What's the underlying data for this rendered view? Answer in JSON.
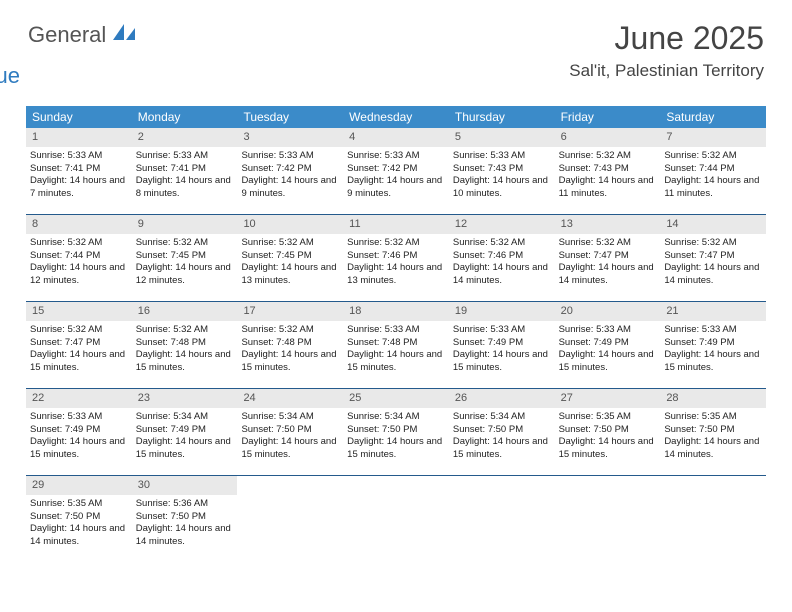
{
  "brand": {
    "word1": "General",
    "word2": "Blue"
  },
  "header": {
    "title": "June 2025",
    "location": "Sal'it, Palestinian Territory"
  },
  "colors": {
    "header_bar": "#3b8bc9",
    "week_divider": "#245a8c",
    "daynum_band": "#e9e9e9",
    "text": "#333333",
    "brand_blue": "#2f7bbf"
  },
  "calendar": {
    "day_labels": [
      "Sunday",
      "Monday",
      "Tuesday",
      "Wednesday",
      "Thursday",
      "Friday",
      "Saturday"
    ],
    "weeks": [
      [
        {
          "n": "1",
          "sunrise": "5:33 AM",
          "sunset": "7:41 PM",
          "daylight": "14 hours and 7 minutes."
        },
        {
          "n": "2",
          "sunrise": "5:33 AM",
          "sunset": "7:41 PM",
          "daylight": "14 hours and 8 minutes."
        },
        {
          "n": "3",
          "sunrise": "5:33 AM",
          "sunset": "7:42 PM",
          "daylight": "14 hours and 9 minutes."
        },
        {
          "n": "4",
          "sunrise": "5:33 AM",
          "sunset": "7:42 PM",
          "daylight": "14 hours and 9 minutes."
        },
        {
          "n": "5",
          "sunrise": "5:33 AM",
          "sunset": "7:43 PM",
          "daylight": "14 hours and 10 minutes."
        },
        {
          "n": "6",
          "sunrise": "5:32 AM",
          "sunset": "7:43 PM",
          "daylight": "14 hours and 11 minutes."
        },
        {
          "n": "7",
          "sunrise": "5:32 AM",
          "sunset": "7:44 PM",
          "daylight": "14 hours and 11 minutes."
        }
      ],
      [
        {
          "n": "8",
          "sunrise": "5:32 AM",
          "sunset": "7:44 PM",
          "daylight": "14 hours and 12 minutes."
        },
        {
          "n": "9",
          "sunrise": "5:32 AM",
          "sunset": "7:45 PM",
          "daylight": "14 hours and 12 minutes."
        },
        {
          "n": "10",
          "sunrise": "5:32 AM",
          "sunset": "7:45 PM",
          "daylight": "14 hours and 13 minutes."
        },
        {
          "n": "11",
          "sunrise": "5:32 AM",
          "sunset": "7:46 PM",
          "daylight": "14 hours and 13 minutes."
        },
        {
          "n": "12",
          "sunrise": "5:32 AM",
          "sunset": "7:46 PM",
          "daylight": "14 hours and 14 minutes."
        },
        {
          "n": "13",
          "sunrise": "5:32 AM",
          "sunset": "7:47 PM",
          "daylight": "14 hours and 14 minutes."
        },
        {
          "n": "14",
          "sunrise": "5:32 AM",
          "sunset": "7:47 PM",
          "daylight": "14 hours and 14 minutes."
        }
      ],
      [
        {
          "n": "15",
          "sunrise": "5:32 AM",
          "sunset": "7:47 PM",
          "daylight": "14 hours and 15 minutes."
        },
        {
          "n": "16",
          "sunrise": "5:32 AM",
          "sunset": "7:48 PM",
          "daylight": "14 hours and 15 minutes."
        },
        {
          "n": "17",
          "sunrise": "5:32 AM",
          "sunset": "7:48 PM",
          "daylight": "14 hours and 15 minutes."
        },
        {
          "n": "18",
          "sunrise": "5:33 AM",
          "sunset": "7:48 PM",
          "daylight": "14 hours and 15 minutes."
        },
        {
          "n": "19",
          "sunrise": "5:33 AM",
          "sunset": "7:49 PM",
          "daylight": "14 hours and 15 minutes."
        },
        {
          "n": "20",
          "sunrise": "5:33 AM",
          "sunset": "7:49 PM",
          "daylight": "14 hours and 15 minutes."
        },
        {
          "n": "21",
          "sunrise": "5:33 AM",
          "sunset": "7:49 PM",
          "daylight": "14 hours and 15 minutes."
        }
      ],
      [
        {
          "n": "22",
          "sunrise": "5:33 AM",
          "sunset": "7:49 PM",
          "daylight": "14 hours and 15 minutes."
        },
        {
          "n": "23",
          "sunrise": "5:34 AM",
          "sunset": "7:49 PM",
          "daylight": "14 hours and 15 minutes."
        },
        {
          "n": "24",
          "sunrise": "5:34 AM",
          "sunset": "7:50 PM",
          "daylight": "14 hours and 15 minutes."
        },
        {
          "n": "25",
          "sunrise": "5:34 AM",
          "sunset": "7:50 PM",
          "daylight": "14 hours and 15 minutes."
        },
        {
          "n": "26",
          "sunrise": "5:34 AM",
          "sunset": "7:50 PM",
          "daylight": "14 hours and 15 minutes."
        },
        {
          "n": "27",
          "sunrise": "5:35 AM",
          "sunset": "7:50 PM",
          "daylight": "14 hours and 15 minutes."
        },
        {
          "n": "28",
          "sunrise": "5:35 AM",
          "sunset": "7:50 PM",
          "daylight": "14 hours and 14 minutes."
        }
      ],
      [
        {
          "n": "29",
          "sunrise": "5:35 AM",
          "sunset": "7:50 PM",
          "daylight": "14 hours and 14 minutes."
        },
        {
          "n": "30",
          "sunrise": "5:36 AM",
          "sunset": "7:50 PM",
          "daylight": "14 hours and 14 minutes."
        },
        null,
        null,
        null,
        null,
        null
      ]
    ],
    "labels": {
      "sunrise_prefix": "Sunrise: ",
      "sunset_prefix": "Sunset: ",
      "daylight_prefix": "Daylight: "
    }
  }
}
